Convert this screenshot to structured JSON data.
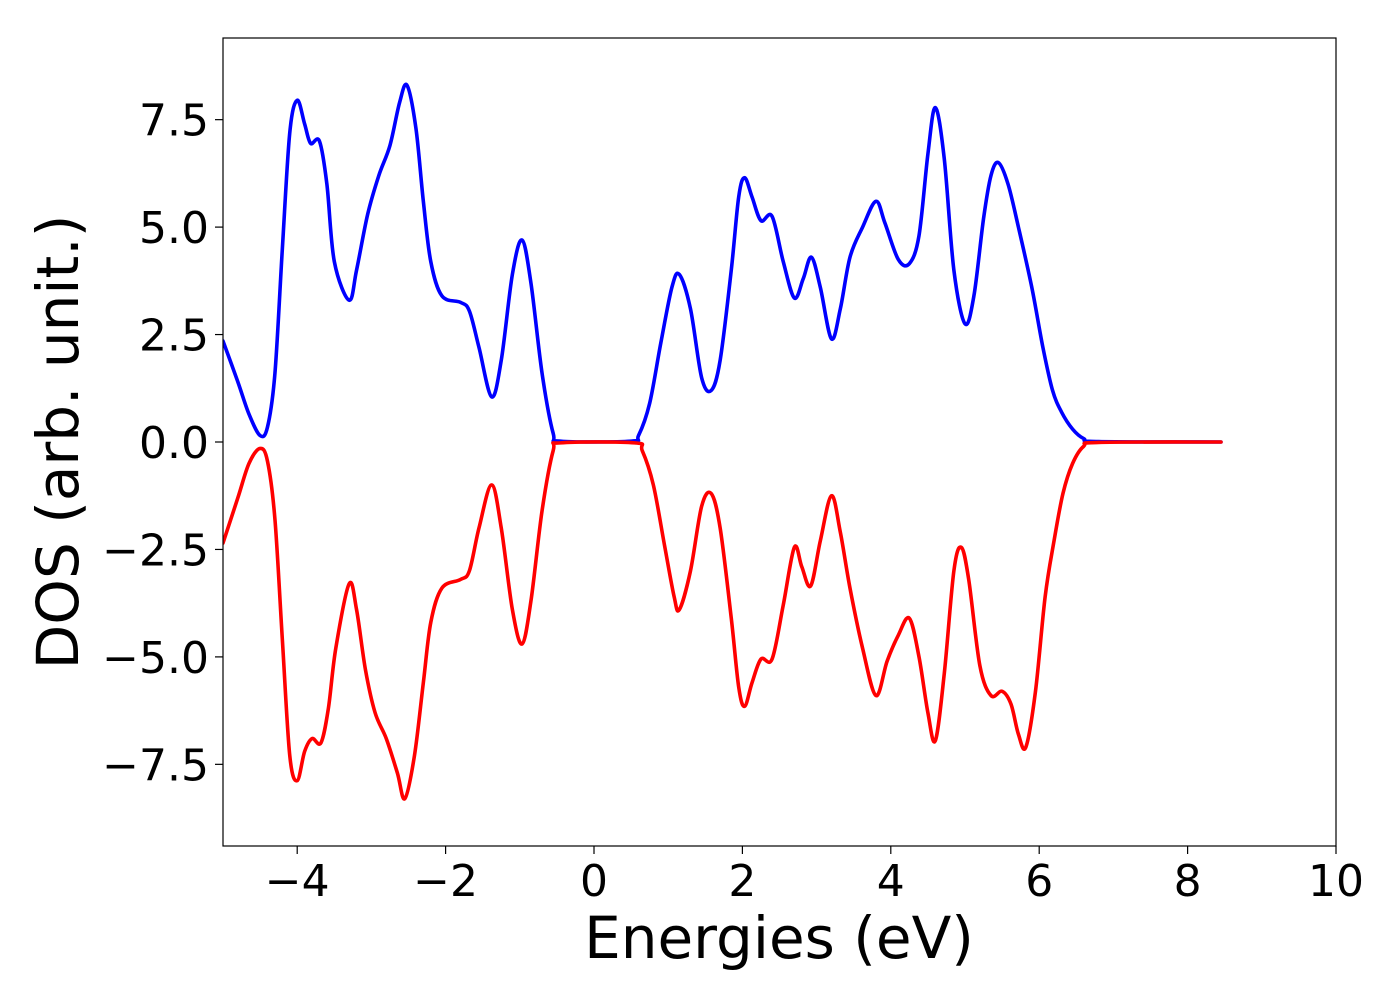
{
  "chart_data": {
    "type": "line",
    "title": "",
    "xlabel": "Energies (eV)",
    "ylabel": "DOS (arb. unit.)",
    "xlim": [
      -5,
      10
    ],
    "ylim": [
      -9.4,
      9.4
    ],
    "grid": false,
    "legend": "none",
    "x_ticks": [
      -4,
      -2,
      0,
      2,
      4,
      6,
      8,
      10
    ],
    "x_tick_labels": [
      "−4",
      "−2",
      "0",
      "2",
      "4",
      "6",
      "8",
      "10"
    ],
    "y_ticks": [
      7.5,
      5.0,
      2.5,
      0.0,
      -2.5,
      -5.0,
      -7.5
    ],
    "y_tick_labels": [
      "7.5",
      "5.0",
      "2.5",
      "0.0",
      "−2.5",
      "−5.0",
      "−7.5"
    ],
    "series": [
      {
        "color": "#0000ff",
        "points": [
          [
            -5.0,
            2.35
          ],
          [
            -4.8,
            1.4
          ],
          [
            -4.65,
            0.65
          ],
          [
            -4.5,
            0.15
          ],
          [
            -4.4,
            0.35
          ],
          [
            -4.3,
            1.6
          ],
          [
            -4.2,
            4.5
          ],
          [
            -4.1,
            7.2
          ],
          [
            -4.0,
            7.95
          ],
          [
            -3.9,
            7.4
          ],
          [
            -3.82,
            6.95
          ],
          [
            -3.7,
            7.0
          ],
          [
            -3.6,
            6.0
          ],
          [
            -3.5,
            4.2
          ],
          [
            -3.3,
            3.3
          ],
          [
            -3.2,
            4.0
          ],
          [
            -3.05,
            5.3
          ],
          [
            -2.9,
            6.2
          ],
          [
            -2.75,
            6.9
          ],
          [
            -2.62,
            7.9
          ],
          [
            -2.52,
            8.3
          ],
          [
            -2.4,
            7.3
          ],
          [
            -2.3,
            5.6
          ],
          [
            -2.2,
            4.2
          ],
          [
            -2.05,
            3.4
          ],
          [
            -1.8,
            3.25
          ],
          [
            -1.68,
            3.05
          ],
          [
            -1.55,
            2.2
          ],
          [
            -1.38,
            1.05
          ],
          [
            -1.25,
            1.9
          ],
          [
            -1.1,
            3.9
          ],
          [
            -0.97,
            4.7
          ],
          [
            -0.85,
            3.7
          ],
          [
            -0.7,
            1.6
          ],
          [
            -0.55,
            0.2
          ],
          [
            -0.45,
            0.02
          ],
          [
            0.5,
            0.02
          ],
          [
            0.6,
            0.15
          ],
          [
            0.75,
            0.9
          ],
          [
            0.9,
            2.3
          ],
          [
            1.05,
            3.6
          ],
          [
            1.15,
            3.9
          ],
          [
            1.3,
            3.1
          ],
          [
            1.45,
            1.5
          ],
          [
            1.58,
            1.2
          ],
          [
            1.7,
            1.9
          ],
          [
            1.85,
            4.0
          ],
          [
            1.95,
            5.7
          ],
          [
            2.03,
            6.15
          ],
          [
            2.13,
            5.7
          ],
          [
            2.25,
            5.15
          ],
          [
            2.4,
            5.25
          ],
          [
            2.55,
            4.2
          ],
          [
            2.7,
            3.35
          ],
          [
            2.82,
            3.8
          ],
          [
            2.93,
            4.3
          ],
          [
            3.05,
            3.6
          ],
          [
            3.2,
            2.4
          ],
          [
            3.32,
            3.1
          ],
          [
            3.45,
            4.3
          ],
          [
            3.62,
            5.0
          ],
          [
            3.8,
            5.6
          ],
          [
            3.92,
            5.1
          ],
          [
            4.1,
            4.25
          ],
          [
            4.25,
            4.15
          ],
          [
            4.38,
            4.8
          ],
          [
            4.5,
            6.7
          ],
          [
            4.6,
            7.78
          ],
          [
            4.72,
            6.6
          ],
          [
            4.85,
            4.0
          ],
          [
            5.0,
            2.75
          ],
          [
            5.12,
            3.4
          ],
          [
            5.25,
            5.2
          ],
          [
            5.35,
            6.2
          ],
          [
            5.45,
            6.5
          ],
          [
            5.58,
            6.0
          ],
          [
            5.72,
            5.0
          ],
          [
            5.9,
            3.6
          ],
          [
            6.05,
            2.2
          ],
          [
            6.18,
            1.2
          ],
          [
            6.3,
            0.7
          ],
          [
            6.45,
            0.3
          ],
          [
            6.6,
            0.08
          ],
          [
            6.8,
            0.01
          ],
          [
            8.45,
            0.0
          ]
        ]
      },
      {
        "color": "#ff0000",
        "points": [
          [
            -5.0,
            -2.35
          ],
          [
            -4.8,
            -1.3
          ],
          [
            -4.65,
            -0.5
          ],
          [
            -4.5,
            -0.15
          ],
          [
            -4.4,
            -0.45
          ],
          [
            -4.3,
            -1.8
          ],
          [
            -4.2,
            -4.6
          ],
          [
            -4.1,
            -7.3
          ],
          [
            -4.0,
            -7.88
          ],
          [
            -3.9,
            -7.2
          ],
          [
            -3.8,
            -6.9
          ],
          [
            -3.68,
            -7.0
          ],
          [
            -3.58,
            -6.2
          ],
          [
            -3.48,
            -4.8
          ],
          [
            -3.3,
            -3.3
          ],
          [
            -3.2,
            -3.9
          ],
          [
            -3.08,
            -5.3
          ],
          [
            -2.95,
            -6.3
          ],
          [
            -2.8,
            -6.9
          ],
          [
            -2.65,
            -7.7
          ],
          [
            -2.55,
            -8.3
          ],
          [
            -2.42,
            -7.3
          ],
          [
            -2.3,
            -5.6
          ],
          [
            -2.2,
            -4.2
          ],
          [
            -2.05,
            -3.4
          ],
          [
            -1.8,
            -3.2
          ],
          [
            -1.68,
            -3.0
          ],
          [
            -1.55,
            -2.0
          ],
          [
            -1.38,
            -1.0
          ],
          [
            -1.25,
            -2.0
          ],
          [
            -1.1,
            -3.9
          ],
          [
            -0.97,
            -4.7
          ],
          [
            -0.85,
            -3.7
          ],
          [
            -0.7,
            -1.6
          ],
          [
            -0.55,
            -0.2
          ],
          [
            -0.45,
            -0.02
          ],
          [
            0.55,
            -0.02
          ],
          [
            0.65,
            -0.2
          ],
          [
            0.8,
            -1.0
          ],
          [
            0.95,
            -2.4
          ],
          [
            1.08,
            -3.6
          ],
          [
            1.15,
            -3.9
          ],
          [
            1.3,
            -3.0
          ],
          [
            1.45,
            -1.5
          ],
          [
            1.58,
            -1.2
          ],
          [
            1.7,
            -2.0
          ],
          [
            1.85,
            -4.1
          ],
          [
            1.95,
            -5.7
          ],
          [
            2.03,
            -6.15
          ],
          [
            2.13,
            -5.6
          ],
          [
            2.25,
            -5.05
          ],
          [
            2.4,
            -5.05
          ],
          [
            2.55,
            -3.8
          ],
          [
            2.7,
            -2.45
          ],
          [
            2.8,
            -2.9
          ],
          [
            2.92,
            -3.35
          ],
          [
            3.05,
            -2.3
          ],
          [
            3.2,
            -1.25
          ],
          [
            3.32,
            -2.1
          ],
          [
            3.45,
            -3.4
          ],
          [
            3.62,
            -4.8
          ],
          [
            3.8,
            -5.9
          ],
          [
            3.95,
            -5.1
          ],
          [
            4.1,
            -4.5
          ],
          [
            4.25,
            -4.1
          ],
          [
            4.38,
            -5.0
          ],
          [
            4.5,
            -6.3
          ],
          [
            4.6,
            -6.95
          ],
          [
            4.72,
            -5.4
          ],
          [
            4.85,
            -3.0
          ],
          [
            4.95,
            -2.45
          ],
          [
            5.05,
            -3.2
          ],
          [
            5.2,
            -5.2
          ],
          [
            5.35,
            -5.9
          ],
          [
            5.5,
            -5.8
          ],
          [
            5.62,
            -6.1
          ],
          [
            5.72,
            -6.8
          ],
          [
            5.82,
            -7.1
          ],
          [
            5.95,
            -5.8
          ],
          [
            6.08,
            -3.6
          ],
          [
            6.2,
            -2.3
          ],
          [
            6.32,
            -1.2
          ],
          [
            6.45,
            -0.5
          ],
          [
            6.6,
            -0.1
          ],
          [
            6.8,
            -0.01
          ],
          [
            8.45,
            0.0
          ]
        ]
      }
    ]
  }
}
